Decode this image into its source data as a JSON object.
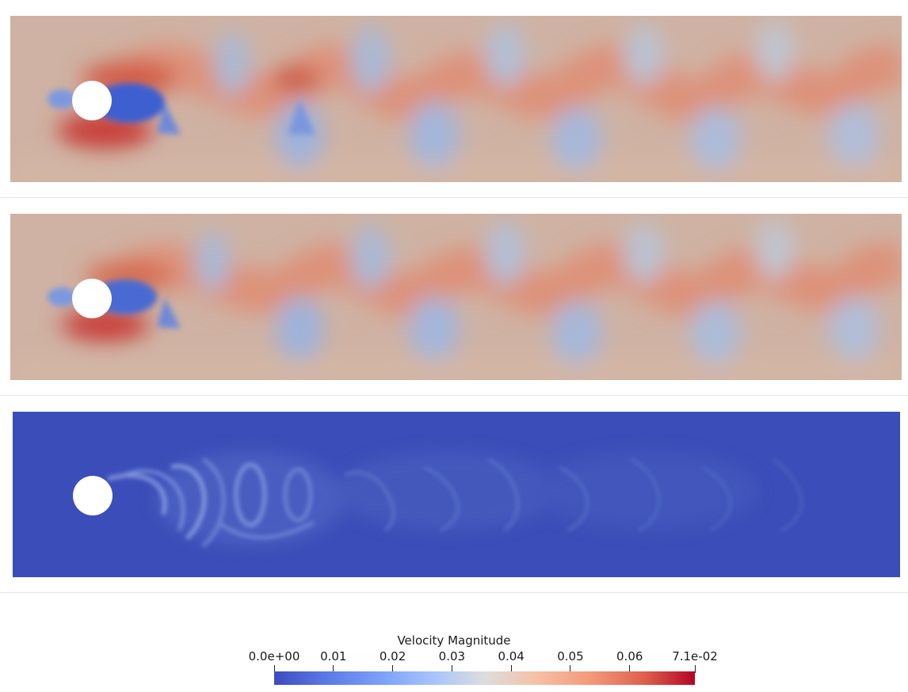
{
  "panels": [
    {
      "name": "field-panel-1",
      "style": "vortex-strong"
    },
    {
      "name": "field-panel-2",
      "style": "vortex-smooth"
    },
    {
      "name": "field-panel-3",
      "style": "error-low"
    }
  ],
  "legend": {
    "title": "Velocity Magnitude",
    "ticks": [
      {
        "label": "0.0e+00",
        "value": 0.0
      },
      {
        "label": "0.01",
        "value": 0.01
      },
      {
        "label": "0.02",
        "value": 0.02
      },
      {
        "label": "0.03",
        "value": 0.03
      },
      {
        "label": "0.04",
        "value": 0.04
      },
      {
        "label": "0.05",
        "value": 0.05
      },
      {
        "label": "0.06",
        "value": 0.06
      },
      {
        "label": "7.1e-02",
        "value": 0.071
      }
    ],
    "range": [
      0.0,
      0.071
    ],
    "colormap": [
      "#3b4cc0",
      "#7b9ff9",
      "#dcdddd",
      "#f49a7b",
      "#b40426"
    ]
  }
}
